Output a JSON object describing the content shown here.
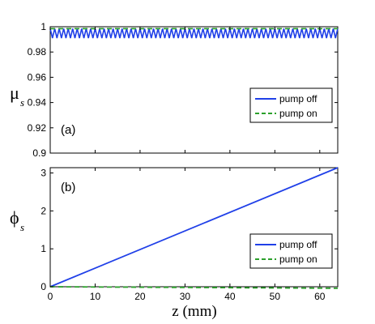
{
  "chart_data": [
    {
      "type": "line",
      "panel_label": "(a)",
      "ylabel_main": "μ",
      "ylabel_sub": "s",
      "xlim": [
        0,
        64
      ],
      "ylim": [
        0.9,
        1.0
      ],
      "x_ticks": [
        0,
        10,
        20,
        30,
        40,
        50,
        60
      ],
      "y_ticks": [
        0.9,
        0.92,
        0.94,
        0.96,
        0.98,
        1
      ],
      "y_tick_labels": [
        "0.9",
        "0.92",
        "0.94",
        "0.96",
        "0.98",
        "1"
      ],
      "legend_position": "lower-right",
      "series": [
        {
          "name": "pump off",
          "color": "#2040e8",
          "style": "solid",
          "oscillation": {
            "low": 0.991,
            "high": 0.9985,
            "cycles": 64
          }
        },
        {
          "name": "pump on",
          "color": "#2ca02c",
          "style": "dashed",
          "x": [
            0,
            64
          ],
          "y": [
            0.9985,
            0.9985
          ]
        }
      ]
    },
    {
      "type": "line",
      "panel_label": "(b)",
      "ylabel_main": "ϕ",
      "ylabel_sub": "s",
      "xlabel": "z (mm)",
      "xlim": [
        0,
        64
      ],
      "ylim": [
        0,
        3.14
      ],
      "x_ticks": [
        0,
        10,
        20,
        30,
        40,
        50,
        60
      ],
      "x_tick_labels": [
        "0",
        "10",
        "20",
        "30",
        "40",
        "50",
        "60"
      ],
      "y_ticks": [
        0,
        1,
        2,
        3
      ],
      "y_tick_labels": [
        "0",
        "1",
        "2",
        "3"
      ],
      "legend_position": "lower-right",
      "series": [
        {
          "name": "pump off",
          "color": "#2040e8",
          "style": "solid",
          "x": [
            0,
            64
          ],
          "y": [
            0,
            3.14
          ]
        },
        {
          "name": "pump on",
          "color": "#2ca02c",
          "style": "dashed",
          "x": [
            0,
            64
          ],
          "y": [
            0,
            -0.04
          ]
        }
      ]
    }
  ]
}
